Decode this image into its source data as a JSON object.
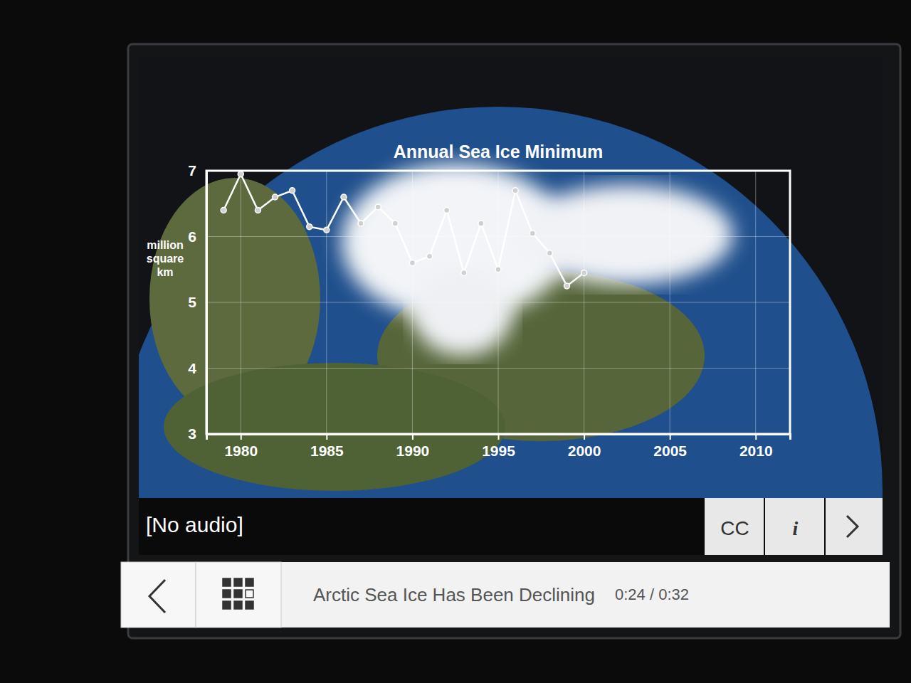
{
  "chart_data": {
    "type": "line",
    "title": "Annual Sea Ice Minimum",
    "y_label": "million square km",
    "x": [
      1979,
      1980,
      1981,
      1982,
      1983,
      1984,
      1985,
      1986,
      1987,
      1988,
      1989,
      1990,
      1991,
      1992,
      1993,
      1994,
      1995,
      1996,
      1997,
      1998,
      1999,
      2000
    ],
    "values": [
      6.4,
      6.95,
      6.4,
      6.6,
      6.7,
      6.15,
      6.1,
      6.6,
      6.2,
      6.45,
      6.2,
      5.6,
      5.7,
      6.4,
      5.45,
      6.2,
      5.5,
      6.7,
      6.05,
      5.75,
      5.25,
      5.45
    ],
    "color": "#ffffff",
    "marker": "circle",
    "xlim": [
      1978,
      2012
    ],
    "xticks": [
      1980,
      1985,
      1990,
      1995,
      2000,
      2005,
      2010
    ],
    "ylim": [
      3,
      7
    ],
    "yticks": [
      3,
      4,
      5,
      6,
      7
    ],
    "grid": true
  },
  "player": {
    "caption": "[No audio]",
    "video_title": "Arctic Sea Ice Has Been Declining",
    "time": "0:24 / 0:32",
    "buttons": [
      "CC",
      "i"
    ]
  }
}
